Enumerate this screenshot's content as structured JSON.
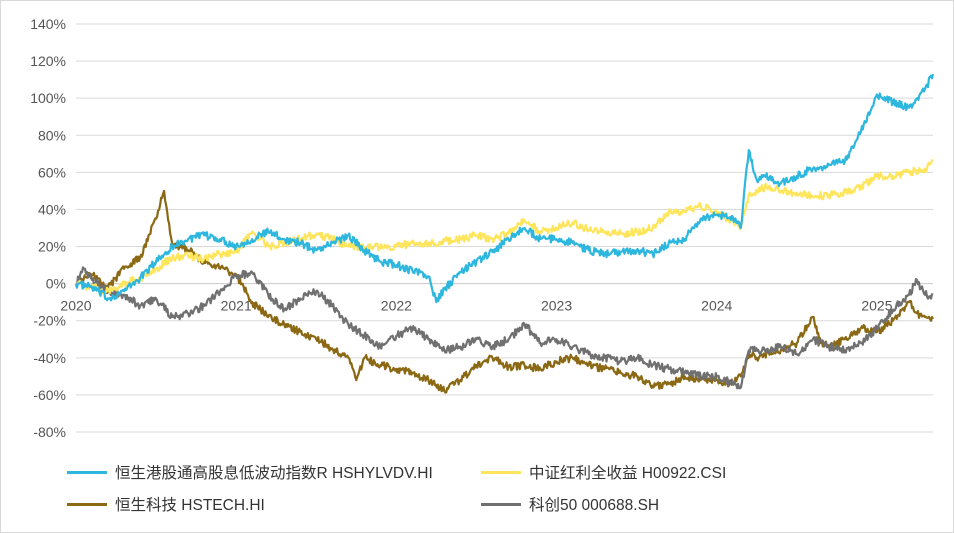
{
  "chart_data": {
    "type": "line",
    "title": "",
    "xlabel": "",
    "ylabel": "",
    "ylim": [
      -80,
      140
    ],
    "y_ticks": [
      {
        "value": 140,
        "label": "140%"
      },
      {
        "value": 120,
        "label": "120%"
      },
      {
        "value": 100,
        "label": "100%"
      },
      {
        "value": 80,
        "label": "80%"
      },
      {
        "value": 60,
        "label": "60%"
      },
      {
        "value": 40,
        "label": "40%"
      },
      {
        "value": 20,
        "label": "20%"
      },
      {
        "value": 0,
        "label": "0%"
      },
      {
        "value": -20,
        "label": "-20%"
      },
      {
        "value": -40,
        "label": "-40%"
      },
      {
        "value": -60,
        "label": "-60%"
      },
      {
        "value": -80,
        "label": "-80%"
      }
    ],
    "xlim": [
      2020.0,
      2025.35
    ],
    "x_ticks": [
      {
        "value": 2020,
        "label": "2020"
      },
      {
        "value": 2021,
        "label": "2021"
      },
      {
        "value": 2022,
        "label": "2022"
      },
      {
        "value": 2023,
        "label": "2023"
      },
      {
        "value": 2024,
        "label": "2024"
      },
      {
        "value": 2025,
        "label": "2025"
      }
    ],
    "grid": "horizontal",
    "legend_position": "bottom",
    "series": [
      {
        "name": "恒生港股通高股息低波动指数R HSHYLVDV.HI",
        "color": "#2EB7DE",
        "points": [
          [
            2020.0,
            0
          ],
          [
            2020.1,
            -2
          ],
          [
            2020.2,
            -8
          ],
          [
            2020.3,
            -4
          ],
          [
            2020.4,
            3
          ],
          [
            2020.5,
            12
          ],
          [
            2020.6,
            20
          ],
          [
            2020.7,
            24
          ],
          [
            2020.8,
            26
          ],
          [
            2020.9,
            24
          ],
          [
            2021.0,
            20
          ],
          [
            2021.1,
            24
          ],
          [
            2021.2,
            28
          ],
          [
            2021.3,
            24
          ],
          [
            2021.4,
            22
          ],
          [
            2021.5,
            18
          ],
          [
            2021.6,
            22
          ],
          [
            2021.7,
            26
          ],
          [
            2021.8,
            18
          ],
          [
            2021.9,
            12
          ],
          [
            2022.0,
            10
          ],
          [
            2022.1,
            7
          ],
          [
            2022.2,
            4
          ],
          [
            2022.25,
            -10
          ],
          [
            2022.3,
            -3
          ],
          [
            2022.4,
            6
          ],
          [
            2022.5,
            12
          ],
          [
            2022.6,
            17
          ],
          [
            2022.7,
            24
          ],
          [
            2022.8,
            30
          ],
          [
            2022.9,
            24
          ],
          [
            2023.0,
            24
          ],
          [
            2023.1,
            22
          ],
          [
            2023.2,
            18
          ],
          [
            2023.3,
            16
          ],
          [
            2023.4,
            17
          ],
          [
            2023.5,
            18
          ],
          [
            2023.6,
            16
          ],
          [
            2023.7,
            22
          ],
          [
            2023.8,
            24
          ],
          [
            2023.9,
            35
          ],
          [
            2024.0,
            37
          ],
          [
            2024.1,
            36
          ],
          [
            2024.15,
            30
          ],
          [
            2024.2,
            72
          ],
          [
            2024.25,
            56
          ],
          [
            2024.3,
            58
          ],
          [
            2024.4,
            54
          ],
          [
            2024.5,
            58
          ],
          [
            2024.6,
            62
          ],
          [
            2024.7,
            64
          ],
          [
            2024.8,
            66
          ],
          [
            2024.9,
            82
          ],
          [
            2025.0,
            102
          ],
          [
            2025.1,
            98
          ],
          [
            2025.2,
            95
          ],
          [
            2025.3,
            105
          ],
          [
            2025.35,
            113
          ]
        ]
      },
      {
        "name": "中证红利全收益 H00922.CSI",
        "color": "#FFE55C",
        "points": [
          [
            2020.0,
            0
          ],
          [
            2020.1,
            -2
          ],
          [
            2020.2,
            -4
          ],
          [
            2020.3,
            0
          ],
          [
            2020.4,
            3
          ],
          [
            2020.5,
            8
          ],
          [
            2020.6,
            14
          ],
          [
            2020.7,
            15
          ],
          [
            2020.8,
            13
          ],
          [
            2020.9,
            16
          ],
          [
            2021.0,
            17
          ],
          [
            2021.1,
            28
          ],
          [
            2021.2,
            20
          ],
          [
            2021.3,
            22
          ],
          [
            2021.4,
            24
          ],
          [
            2021.5,
            27
          ],
          [
            2021.6,
            24
          ],
          [
            2021.7,
            20
          ],
          [
            2021.8,
            19
          ],
          [
            2021.9,
            20
          ],
          [
            2022.0,
            20
          ],
          [
            2022.1,
            22
          ],
          [
            2022.2,
            21
          ],
          [
            2022.3,
            23
          ],
          [
            2022.4,
            24
          ],
          [
            2022.5,
            26
          ],
          [
            2022.6,
            24
          ],
          [
            2022.7,
            27
          ],
          [
            2022.8,
            34
          ],
          [
            2022.9,
            28
          ],
          [
            2023.0,
            30
          ],
          [
            2023.1,
            33
          ],
          [
            2023.2,
            29
          ],
          [
            2023.3,
            28
          ],
          [
            2023.4,
            27
          ],
          [
            2023.5,
            28
          ],
          [
            2023.6,
            30
          ],
          [
            2023.7,
            38
          ],
          [
            2023.8,
            39
          ],
          [
            2023.9,
            42
          ],
          [
            2024.0,
            38
          ],
          [
            2024.1,
            34
          ],
          [
            2024.15,
            30
          ],
          [
            2024.2,
            48
          ],
          [
            2024.3,
            52
          ],
          [
            2024.4,
            50
          ],
          [
            2024.5,
            49
          ],
          [
            2024.6,
            47
          ],
          [
            2024.7,
            48
          ],
          [
            2024.8,
            49
          ],
          [
            2024.9,
            52
          ],
          [
            2025.0,
            58
          ],
          [
            2025.1,
            58
          ],
          [
            2025.2,
            60
          ],
          [
            2025.3,
            62
          ],
          [
            2025.35,
            67
          ]
        ]
      },
      {
        "name": "恒生科技 HSTECH.HI",
        "color": "#8B6914",
        "points": [
          [
            2020.0,
            0
          ],
          [
            2020.1,
            5
          ],
          [
            2020.2,
            -2
          ],
          [
            2020.3,
            8
          ],
          [
            2020.4,
            14
          ],
          [
            2020.5,
            35
          ],
          [
            2020.55,
            50
          ],
          [
            2020.6,
            22
          ],
          [
            2020.7,
            18
          ],
          [
            2020.8,
            12
          ],
          [
            2020.9,
            8
          ],
          [
            2021.0,
            5
          ],
          [
            2021.1,
            -10
          ],
          [
            2021.2,
            -18
          ],
          [
            2021.3,
            -22
          ],
          [
            2021.4,
            -26
          ],
          [
            2021.5,
            -30
          ],
          [
            2021.6,
            -35
          ],
          [
            2021.7,
            -40
          ],
          [
            2021.75,
            -52
          ],
          [
            2021.8,
            -40
          ],
          [
            2021.9,
            -44
          ],
          [
            2022.0,
            -46
          ],
          [
            2022.1,
            -48
          ],
          [
            2022.2,
            -52
          ],
          [
            2022.3,
            -58
          ],
          [
            2022.4,
            -52
          ],
          [
            2022.5,
            -44
          ],
          [
            2022.6,
            -40
          ],
          [
            2022.7,
            -45
          ],
          [
            2022.8,
            -44
          ],
          [
            2022.9,
            -46
          ],
          [
            2023.0,
            -42
          ],
          [
            2023.1,
            -40
          ],
          [
            2023.2,
            -44
          ],
          [
            2023.3,
            -46
          ],
          [
            2023.4,
            -48
          ],
          [
            2023.5,
            -50
          ],
          [
            2023.6,
            -55
          ],
          [
            2023.7,
            -54
          ],
          [
            2023.8,
            -50
          ],
          [
            2023.9,
            -52
          ],
          [
            2024.0,
            -52
          ],
          [
            2024.1,
            -54
          ],
          [
            2024.15,
            -50
          ],
          [
            2024.2,
            -38
          ],
          [
            2024.25,
            -40
          ],
          [
            2024.3,
            -38
          ],
          [
            2024.4,
            -36
          ],
          [
            2024.5,
            -32
          ],
          [
            2024.6,
            -18
          ],
          [
            2024.65,
            -32
          ],
          [
            2024.7,
            -34
          ],
          [
            2024.8,
            -30
          ],
          [
            2024.9,
            -24
          ],
          [
            2025.0,
            -26
          ],
          [
            2025.1,
            -20
          ],
          [
            2025.2,
            -10
          ],
          [
            2025.25,
            -16
          ],
          [
            2025.3,
            -18
          ],
          [
            2025.35,
            -19
          ]
        ]
      },
      {
        "name": "科创50 000688.SH",
        "color": "#707070",
        "points": [
          [
            2020.0,
            0
          ],
          [
            2020.05,
            8
          ],
          [
            2020.1,
            2
          ],
          [
            2020.2,
            -4
          ],
          [
            2020.3,
            -6
          ],
          [
            2020.4,
            -12
          ],
          [
            2020.5,
            -8
          ],
          [
            2020.6,
            -18
          ],
          [
            2020.7,
            -16
          ],
          [
            2020.8,
            -12
          ],
          [
            2020.9,
            -4
          ],
          [
            2021.0,
            4
          ],
          [
            2021.1,
            6
          ],
          [
            2021.2,
            -6
          ],
          [
            2021.3,
            -14
          ],
          [
            2021.4,
            -8
          ],
          [
            2021.5,
            -4
          ],
          [
            2021.6,
            -12
          ],
          [
            2021.7,
            -22
          ],
          [
            2021.8,
            -28
          ],
          [
            2021.9,
            -34
          ],
          [
            2022.0,
            -28
          ],
          [
            2022.1,
            -24
          ],
          [
            2022.2,
            -30
          ],
          [
            2022.3,
            -36
          ],
          [
            2022.4,
            -34
          ],
          [
            2022.5,
            -30
          ],
          [
            2022.6,
            -34
          ],
          [
            2022.7,
            -30
          ],
          [
            2022.8,
            -22
          ],
          [
            2022.9,
            -32
          ],
          [
            2023.0,
            -30
          ],
          [
            2023.1,
            -34
          ],
          [
            2023.2,
            -38
          ],
          [
            2023.3,
            -40
          ],
          [
            2023.4,
            -42
          ],
          [
            2023.5,
            -40
          ],
          [
            2023.6,
            -44
          ],
          [
            2023.7,
            -46
          ],
          [
            2023.8,
            -48
          ],
          [
            2023.9,
            -50
          ],
          [
            2024.0,
            -50
          ],
          [
            2024.1,
            -54
          ],
          [
            2024.15,
            -56
          ],
          [
            2024.2,
            -36
          ],
          [
            2024.3,
            -36
          ],
          [
            2024.4,
            -34
          ],
          [
            2024.5,
            -38
          ],
          [
            2024.6,
            -30
          ],
          [
            2024.7,
            -34
          ],
          [
            2024.8,
            -36
          ],
          [
            2024.9,
            -32
          ],
          [
            2025.0,
            -24
          ],
          [
            2025.1,
            -14
          ],
          [
            2025.2,
            -6
          ],
          [
            2025.25,
            2
          ],
          [
            2025.3,
            -6
          ],
          [
            2025.35,
            -6
          ]
        ]
      }
    ]
  }
}
